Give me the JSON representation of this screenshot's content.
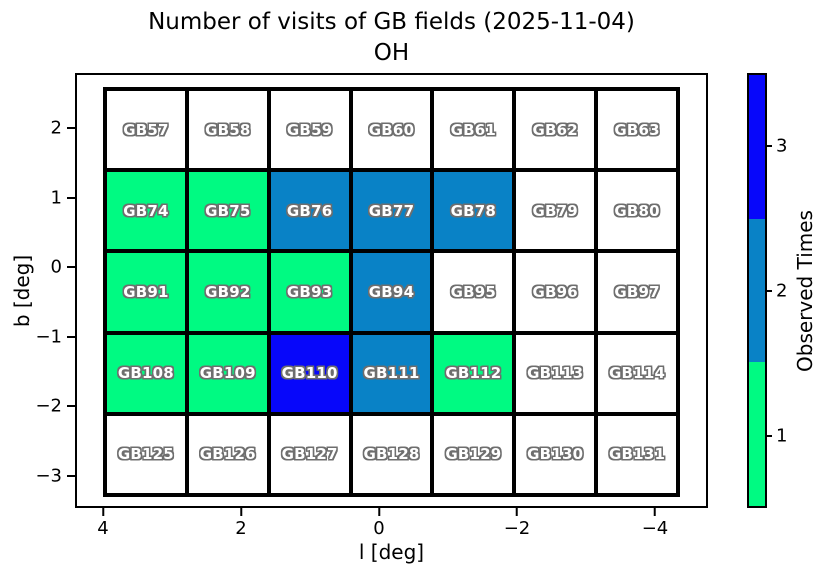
{
  "title": {
    "line1": "Number of visits of GB fields (2025-11-04)",
    "line2": "OH"
  },
  "x_axis": {
    "label": "l [deg]",
    "ticks": [
      "4",
      "2",
      "0",
      "−2",
      "−4"
    ]
  },
  "y_axis": {
    "label": "b [deg]",
    "ticks": [
      "2",
      "1",
      "0",
      "−1",
      "−2",
      "−3"
    ]
  },
  "colorbar": {
    "label": "Observed Times",
    "ticks": [
      "3",
      "2",
      "1"
    ]
  },
  "colors": {
    "visits_0": "#ffffff",
    "visits_1": "#00fa82",
    "visits_2": "#0982c6",
    "visits_3": "#0707fa",
    "cell_border": "#000000",
    "label_outline": "#6e6e6e"
  },
  "chart_data": {
    "type": "heatmap",
    "title": "Number of visits of GB fields (2025-11-04)",
    "subtitle": "OH",
    "xlabel": "l [deg]",
    "ylabel": "b [deg]",
    "x_tick_labels": [
      4,
      2,
      0,
      -2,
      -4
    ],
    "y_tick_labels": [
      2,
      1,
      0,
      -1,
      -2,
      -3
    ],
    "x_axis_inverted": true,
    "grid_shape": {
      "rows": 5,
      "cols": 7
    },
    "colorbar": {
      "label": "Observed Times",
      "ticks": [
        1,
        2,
        3
      ],
      "segment_colors_top_to_bottom": [
        "#0707fa",
        "#0982c6",
        "#00fa82"
      ]
    },
    "value_colors": {
      "0": "#ffffff",
      "1": "#00fa82",
      "2": "#0982c6",
      "3": "#0707fa"
    },
    "rows": [
      {
        "fields": [
          "GB57",
          "GB58",
          "GB59",
          "GB60",
          "GB61",
          "GB62",
          "GB63"
        ],
        "visits": [
          0,
          0,
          0,
          0,
          0,
          0,
          0
        ]
      },
      {
        "fields": [
          "GB74",
          "GB75",
          "GB76",
          "GB77",
          "GB78",
          "GB79",
          "GB80"
        ],
        "visits": [
          1,
          1,
          2,
          2,
          2,
          0,
          0
        ]
      },
      {
        "fields": [
          "GB91",
          "GB92",
          "GB93",
          "GB94",
          "GB95",
          "GB96",
          "GB97"
        ],
        "visits": [
          1,
          1,
          1,
          2,
          0,
          0,
          0
        ]
      },
      {
        "fields": [
          "GB108",
          "GB109",
          "GB110",
          "GB111",
          "GB112",
          "GB113",
          "GB114"
        ],
        "visits": [
          1,
          1,
          3,
          2,
          1,
          0,
          0
        ]
      },
      {
        "fields": [
          "GB125",
          "GB126",
          "GB127",
          "GB128",
          "GB129",
          "GB130",
          "GB131"
        ],
        "visits": [
          0,
          0,
          0,
          0,
          0,
          0,
          0
        ]
      }
    ]
  }
}
